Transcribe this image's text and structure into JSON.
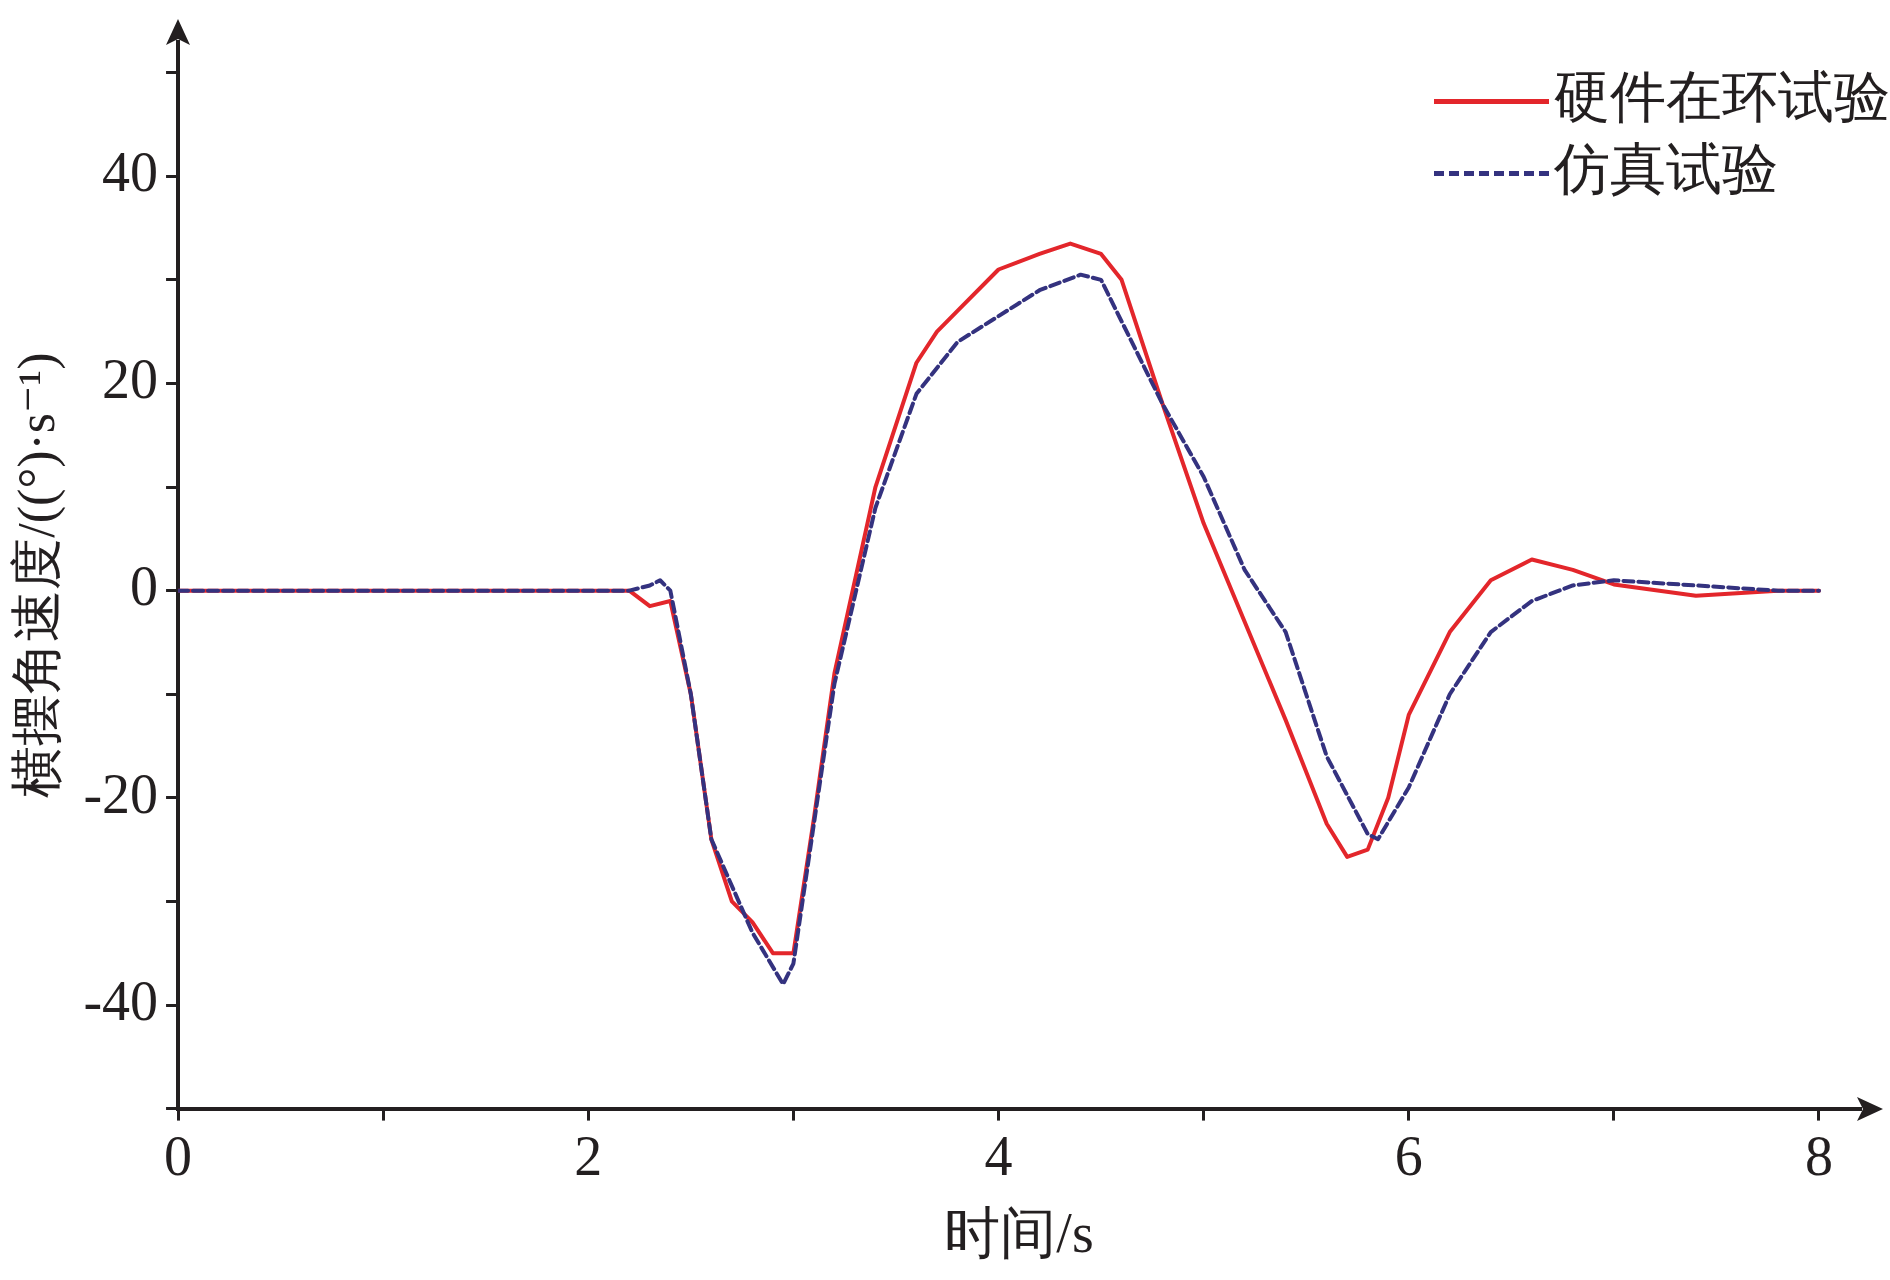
{
  "chart_data": {
    "type": "line",
    "xlabel": "时间/s",
    "ylabel": "横摆角速度/((°)·s⁻¹)",
    "xlim": [
      0,
      8.2
    ],
    "ylim": [
      -50,
      53
    ],
    "xticks": [
      0,
      {
        "value": 1,
        "label": null
      },
      2,
      {
        "value": 3,
        "label": null
      },
      4,
      {
        "value": 5,
        "label": null
      },
      6,
      {
        "value": 7,
        "label": null
      },
      8
    ],
    "yticks": [
      {
        "value": -50,
        "label": null
      },
      -40,
      {
        "value": -30,
        "label": null
      },
      -20,
      {
        "value": -10,
        "label": null
      },
      0,
      {
        "value": 10,
        "label": null
      },
      20,
      {
        "value": 30,
        "label": null
      },
      40,
      {
        "value": 50,
        "label": null
      }
    ],
    "grid": false,
    "legend": "top right",
    "marker": "none",
    "series": [
      {
        "name": "硬件在环试验",
        "color": "#e3262b",
        "line_style": "solid",
        "x": [
          0,
          1,
          2,
          2.2,
          2.3,
          2.4,
          2.5,
          2.6,
          2.7,
          2.8,
          2.9,
          3.0,
          3.1,
          3.2,
          3.4,
          3.6,
          3.7,
          3.8,
          4.0,
          4.2,
          4.35,
          4.5,
          4.6,
          4.8,
          5.0,
          5.2,
          5.4,
          5.6,
          5.7,
          5.8,
          5.9,
          6.0,
          6.2,
          6.4,
          6.6,
          6.8,
          7.0,
          7.4,
          7.8,
          8.0
        ],
        "values": [
          0,
          0,
          0,
          0,
          -1.5,
          -1,
          -10,
          -24,
          -30,
          -32,
          -35,
          -35,
          -22,
          -8,
          10,
          22,
          25,
          27,
          31,
          32.5,
          33.5,
          32.5,
          30,
          18,
          6.5,
          -3,
          -12.5,
          -22.5,
          -25.7,
          -25,
          -20,
          -12,
          -4,
          1,
          3,
          2,
          0.6,
          -0.5,
          0,
          0
        ]
      },
      {
        "name": "仿真试验",
        "color": "#34327f",
        "line_style": "dashed",
        "x": [
          0,
          1,
          2,
          2.2,
          2.3,
          2.35,
          2.4,
          2.5,
          2.6,
          2.8,
          2.95,
          3.0,
          3.2,
          3.4,
          3.6,
          3.8,
          4.0,
          4.2,
          4.4,
          4.5,
          4.6,
          4.8,
          5.0,
          5.2,
          5.4,
          5.6,
          5.8,
          5.85,
          6.0,
          6.2,
          6.4,
          6.6,
          6.8,
          7.0,
          7.4,
          7.8,
          8.0
        ],
        "values": [
          0,
          0,
          0,
          0,
          0.5,
          1,
          0,
          -10,
          -24,
          -33,
          -38,
          -36,
          -9,
          8,
          19,
          24,
          26.5,
          29,
          30.5,
          30,
          26,
          18,
          11,
          2,
          -4,
          -16,
          -23.5,
          -24,
          -19,
          -10,
          -4,
          -1,
          0.5,
          1,
          0.5,
          0,
          0
        ]
      }
    ]
  }
}
